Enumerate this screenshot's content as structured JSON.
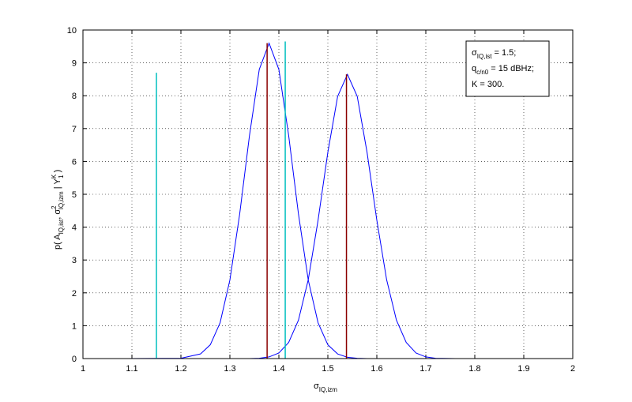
{
  "chart_data": {
    "type": "line",
    "x": [
      1.09,
      1.2,
      1.24,
      1.26,
      1.28,
      1.3,
      1.32,
      1.34,
      1.36,
      1.38,
      1.4,
      1.42,
      1.44,
      1.46,
      1.48,
      1.5,
      1.52,
      1.54,
      1.56,
      1.58,
      1.6,
      1.62,
      1.64,
      1.66,
      1.68,
      1.7,
      1.72,
      1.76,
      2.0
    ],
    "series": [
      {
        "color": "#0000ff",
        "values": [
          0,
          0.01,
          0.14,
          0.42,
          1.09,
          2.39,
          4.4,
          6.79,
          8.8,
          9.6,
          8.8,
          6.79,
          4.4,
          2.39,
          1.09,
          0.42,
          0.14,
          0.04,
          0.01,
          0,
          0,
          0,
          0,
          0,
          0,
          0,
          0,
          0,
          0
        ]
      },
      {
        "color": "#0000ff",
        "values": [
          0,
          0,
          0,
          0,
          0,
          0,
          0,
          0,
          0.01,
          0.05,
          0.17,
          0.49,
          1.17,
          2.4,
          4.21,
          6.28,
          7.98,
          8.65,
          7.98,
          6.28,
          4.21,
          2.4,
          1.17,
          0.49,
          0.17,
          0.05,
          0.01,
          0,
          0
        ]
      }
    ],
    "vlines": [
      {
        "x": 1.15,
        "y": 8.7,
        "color": "#00bfbf"
      },
      {
        "x": 1.413,
        "y": 9.65,
        "color": "#00bfbf"
      },
      {
        "x": 1.376,
        "y": 9.6,
        "color": "#8b0000"
      },
      {
        "x": 1.538,
        "y": 8.65,
        "color": "#8b0000"
      }
    ],
    "xlim": [
      1,
      2
    ],
    "ylim": [
      0,
      10
    ],
    "xticks": [
      1,
      1.1,
      1.2,
      1.3,
      1.4,
      1.5,
      1.6,
      1.7,
      1.8,
      1.9,
      2
    ],
    "yticks": [
      0,
      1,
      2,
      3,
      4,
      5,
      6,
      7,
      8,
      9,
      10
    ],
    "grid": true,
    "xlabel": [
      {
        "text": "σ",
        "shift": "base"
      },
      {
        "text": "IQ,izm",
        "shift": "sub"
      }
    ],
    "ylabel": [
      {
        "text": "p( A",
        "shift": "base"
      },
      {
        "text": "IQ,ist",
        "shift": "sub"
      },
      {
        "text": ", σ",
        "shift": "base"
      },
      {
        "text": "2",
        "shift": "sup"
      },
      {
        "text": "IQ,izm",
        "shift": "sub"
      },
      {
        "text": " | Y",
        "shift": "base"
      },
      {
        "text": "K",
        "shift": "sup"
      },
      {
        "text": "1",
        "shift": "sub"
      },
      {
        "text": " )",
        "shift": "base"
      }
    ],
    "annotation": [
      [
        {
          "text": "σ",
          "shift": "base"
        },
        {
          "text": "IQ,ist",
          "shift": "sub"
        },
        {
          "text": " = 1.5;",
          "shift": "base"
        }
      ],
      [
        {
          "text": "q",
          "shift": "base"
        },
        {
          "text": "c/n0",
          "shift": "sub"
        },
        {
          "text": " = 15 dBHz;",
          "shift": "base"
        }
      ],
      [
        {
          "text": "K = 300.",
          "shift": "base"
        }
      ]
    ]
  }
}
